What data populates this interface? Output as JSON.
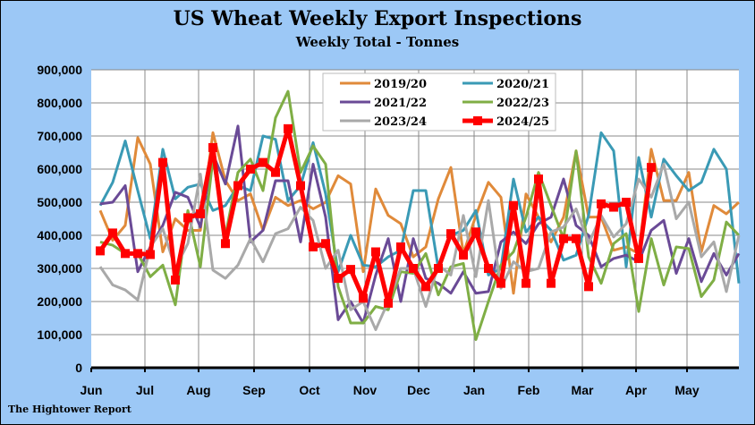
{
  "chart_data": {
    "type": "line",
    "title": "US Wheat Weekly Export Inspections",
    "subtitle": "Weekly Total - Tonnes",
    "xlabel": "",
    "ylabel": "",
    "ylim": [
      0,
      900000
    ],
    "ytick_labels": [
      "0",
      "100,000",
      "200,000",
      "300,000",
      "400,000",
      "500,000",
      "600,000",
      "700,000",
      "800,000",
      "900,000"
    ],
    "x_tick_labels": [
      "Jun",
      "Jul",
      "Aug",
      "Sep",
      "Oct",
      "Nov",
      "Dec",
      "Jan",
      "Feb",
      "Mar",
      "Apr",
      "May"
    ],
    "x_unit": "week of marketing year (June start)",
    "grid": true,
    "legend_position": "top-center",
    "series": [
      {
        "name": "2019/20",
        "color": "#e08a3a",
        "values": [
          475000,
          385000,
          430000,
          695000,
          615000,
          350000,
          450000,
          415000,
          415000,
          710000,
          565000,
          505000,
          525000,
          415000,
          515000,
          490000,
          505000,
          480000,
          500000,
          580000,
          555000,
          290000,
          540000,
          460000,
          435000,
          335000,
          365000,
          510000,
          605000,
          345000,
          460000,
          560000,
          515000,
          225000,
          525000,
          455000,
          380000,
          455000,
          655000,
          455000,
          455000,
          355000,
          365000,
          345000,
          660000,
          505000,
          505000,
          590000,
          350000,
          490000,
          465000,
          500000
        ]
      },
      {
        "name": "2020/21",
        "color": "#3a9ab5",
        "values": [
          490000,
          560000,
          685000,
          535000,
          390000,
          660000,
          510000,
          545000,
          555000,
          475000,
          490000,
          550000,
          535000,
          700000,
          690000,
          505000,
          550000,
          680000,
          525000,
          290000,
          400000,
          310000,
          305000,
          335000,
          355000,
          535000,
          535000,
          300000,
          400000,
          415000,
          475000,
          280000,
          300000,
          570000,
          410000,
          455000,
          415000,
          325000,
          340000,
          460000,
          710000,
          655000,
          305000,
          635000,
          455000,
          630000,
          580000,
          535000,
          560000,
          660000,
          600000,
          255000
        ]
      },
      {
        "name": "2021/22",
        "color": "#6a4a96",
        "values": [
          495000,
          500000,
          550000,
          290000,
          365000,
          430000,
          530000,
          515000,
          425000,
          645000,
          555000,
          730000,
          380000,
          415000,
          565000,
          565000,
          380000,
          615000,
          455000,
          145000,
          200000,
          135000,
          280000,
          390000,
          200000,
          390000,
          270000,
          255000,
          225000,
          290000,
          225000,
          230000,
          380000,
          410000,
          375000,
          435000,
          455000,
          570000,
          430000,
          400000,
          305000,
          330000,
          340000,
          320000,
          415000,
          445000,
          285000,
          390000,
          260000,
          345000,
          280000,
          345000
        ]
      },
      {
        "name": "2022/23",
        "color": "#7fae45",
        "values": [
          380000,
          370000,
          345000,
          345000,
          275000,
          310000,
          190000,
          475000,
          305000,
          630000,
          400000,
          590000,
          630000,
          535000,
          755000,
          835000,
          590000,
          670000,
          615000,
          245000,
          135000,
          135000,
          185000,
          175000,
          290000,
          285000,
          345000,
          220000,
          305000,
          315000,
          85000,
          200000,
          310000,
          350000,
          455000,
          590000,
          490000,
          390000,
          655000,
          335000,
          255000,
          375000,
          405000,
          170000,
          390000,
          250000,
          365000,
          360000,
          215000,
          265000,
          440000,
          400000
        ]
      },
      {
        "name": "2023/24",
        "color": "#a9a9a9",
        "values": [
          305000,
          250000,
          235000,
          205000,
          365000,
          420000,
          300000,
          375000,
          585000,
          295000,
          270000,
          310000,
          390000,
          320000,
          405000,
          420000,
          485000,
          445000,
          300000,
          355000,
          175000,
          200000,
          115000,
          200000,
          300000,
          300000,
          185000,
          310000,
          280000,
          460000,
          275000,
          505000,
          240000,
          320000,
          290000,
          300000,
          410000,
          425000,
          480000,
          375000,
          460000,
          395000,
          435000,
          570000,
          515000,
          615000,
          450000,
          500000,
          335000,
          380000,
          230000,
          400000
        ]
      },
      {
        "name": "2024/25",
        "color": "#ff0000",
        "values": [
          353000,
          407000,
          345000,
          345000,
          342000,
          620000,
          265000,
          453000,
          465000,
          665000,
          375000,
          550000,
          600000,
          620000,
          590000,
          722000,
          550000,
          365000,
          375000,
          270000,
          297000,
          210000,
          350000,
          195000,
          365000,
          300000,
          245000,
          300000,
          405000,
          340000,
          410000,
          300000,
          255000,
          490000,
          255000,
          570000,
          255000,
          390000,
          390000,
          245000,
          495000,
          485000,
          500000,
          330000,
          605000
        ]
      }
    ]
  },
  "footer": "The Hightower Report"
}
